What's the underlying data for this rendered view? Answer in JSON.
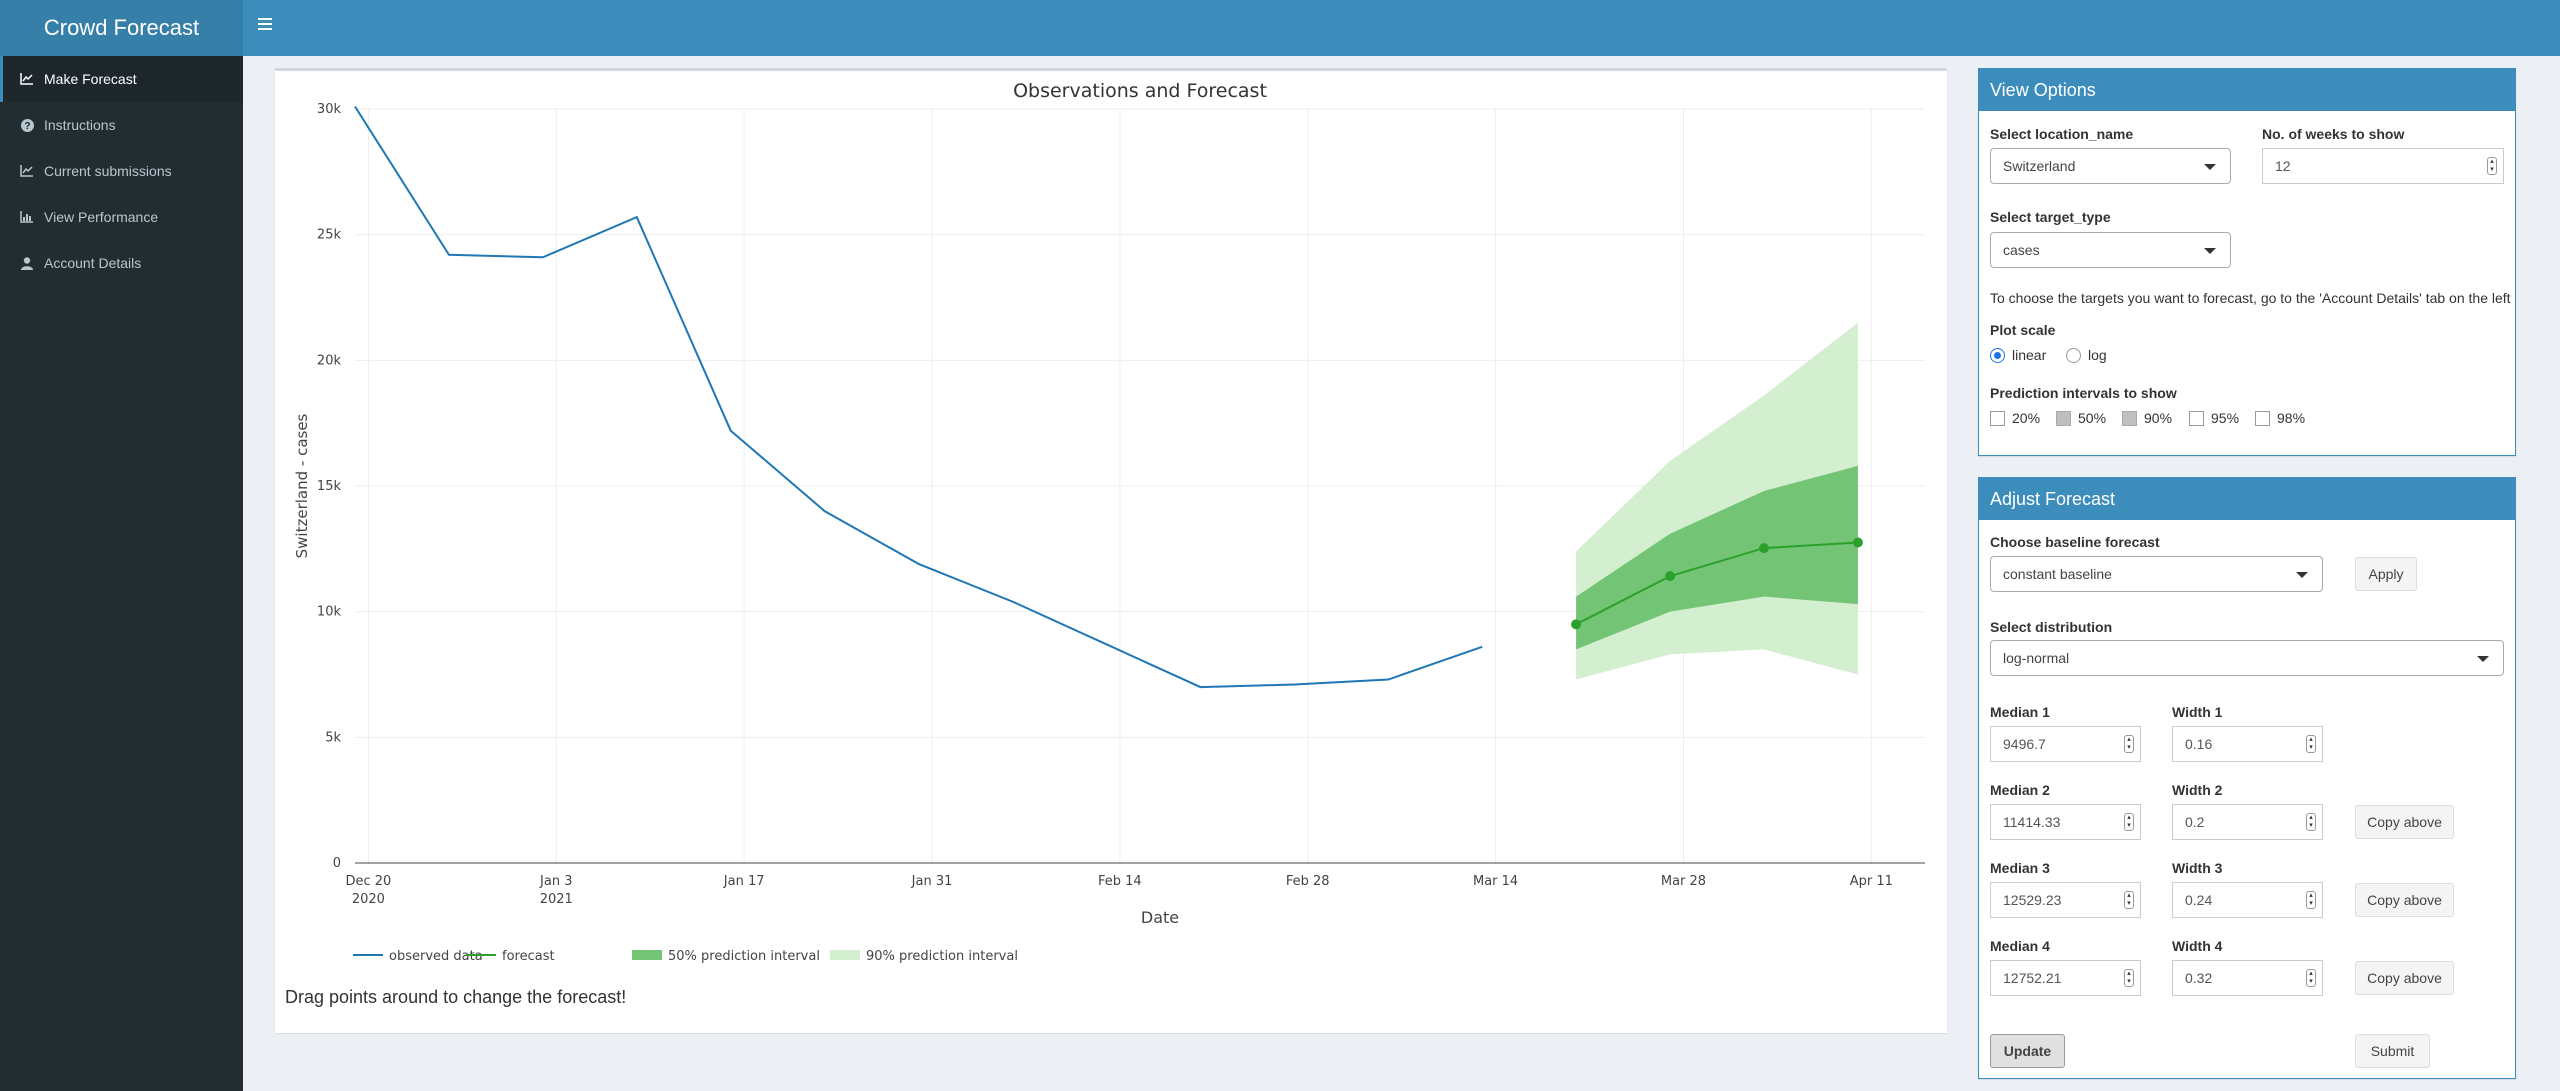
{
  "app": {
    "title": "Crowd Forecast"
  },
  "sidebar": {
    "items": [
      {
        "label": "Make Forecast",
        "icon": "line-chart-icon",
        "active": true
      },
      {
        "label": "Instructions",
        "icon": "question-circle-icon",
        "active": false
      },
      {
        "label": "Current submissions",
        "icon": "line-chart-icon",
        "active": false
      },
      {
        "label": "View Performance",
        "icon": "bar-chart-icon",
        "active": false
      },
      {
        "label": "Account Details",
        "icon": "user-icon",
        "active": false
      }
    ]
  },
  "colors": {
    "header": "#3c8dbc",
    "sidebar": "#222d32",
    "observed": "#1f77b4",
    "forecast": "#2ca02c",
    "pi50": "#74c476",
    "pi90": "#d4eed0"
  },
  "chart": {
    "drag_hint": "Drag points around to change the forecast!"
  },
  "chart_data": {
    "type": "line",
    "title": "Observations and Forecast",
    "xlabel": "Date",
    "ylabel": "Switzerland - cases",
    "x_ticks": [
      "Dec 20",
      "Jan 3",
      "Jan 17",
      "Jan 31",
      "Feb 14",
      "Feb 28",
      "Mar 14",
      "Mar 28",
      "Apr 11"
    ],
    "x_tick_years": [
      "2020",
      "2021"
    ],
    "y_ticks": [
      "0",
      "5k",
      "10k",
      "15k",
      "20k",
      "25k",
      "30k"
    ],
    "ylim": [
      0,
      30000
    ],
    "xlim": [
      "2020-12-19",
      "2021-04-15"
    ],
    "grid": true,
    "legend_position": "bottom",
    "legend": [
      "observed data",
      "forecast",
      "50% prediction interval",
      "90% prediction interval"
    ],
    "observed": {
      "x": [
        "2020-12-19",
        "2020-12-26",
        "2021-01-02",
        "2021-01-09",
        "2021-01-16",
        "2021-01-23",
        "2021-01-30",
        "2021-02-06",
        "2021-02-13",
        "2021-02-20",
        "2021-02-27",
        "2021-03-06",
        "2021-03-13"
      ],
      "y": [
        30100,
        24200,
        24100,
        25700,
        17200,
        14000,
        11900,
        10400,
        8700,
        7000,
        7100,
        7300,
        8600
      ]
    },
    "forecast": {
      "x": [
        "2021-03-20",
        "2021-03-27",
        "2021-04-03",
        "2021-04-10"
      ],
      "median": [
        9496.7,
        11414.33,
        12529.23,
        12752.21
      ],
      "pi50_lower": [
        8500,
        10000,
        10600,
        10300
      ],
      "pi50_upper": [
        10600,
        13100,
        14800,
        15800
      ],
      "pi90_lower": [
        7300,
        8300,
        8500,
        7500
      ],
      "pi90_upper": [
        12400,
        16000,
        18600,
        21500
      ]
    }
  },
  "view_options": {
    "title": "View Options",
    "location_label": "Select location_name",
    "location_value": "Switzerland",
    "weeks_label": "No. of weeks to show",
    "weeks_value": "12",
    "target_label": "Select target_type",
    "target_value": "cases",
    "info_text": "To choose the targets you want to forecast, go to the 'Account Details' tab on the left",
    "scale_label": "Plot scale",
    "scale_options": [
      {
        "label": "linear",
        "selected": true
      },
      {
        "label": "log",
        "selected": false
      }
    ],
    "pi_label": "Prediction intervals to show",
    "pi_options": [
      {
        "label": "20%",
        "checked": false
      },
      {
        "label": "50%",
        "checked": true
      },
      {
        "label": "90%",
        "checked": true
      },
      {
        "label": "95%",
        "checked": false
      },
      {
        "label": "98%",
        "checked": false
      }
    ]
  },
  "adjust": {
    "title": "Adjust Forecast",
    "baseline_label": "Choose baseline forecast",
    "baseline_value": "constant baseline",
    "apply_label": "Apply",
    "distribution_label": "Select distribution",
    "distribution_value": "log-normal",
    "rows": [
      {
        "median_label": "Median 1",
        "median_value": "9496.7",
        "width_label": "Width 1",
        "width_value": "0.16"
      },
      {
        "median_label": "Median 2",
        "median_value": "11414.33",
        "width_label": "Width 2",
        "width_value": "0.2"
      },
      {
        "median_label": "Median 3",
        "median_value": "12529.23",
        "width_label": "Width 3",
        "width_value": "0.24"
      },
      {
        "median_label": "Median 4",
        "median_value": "12752.21",
        "width_label": "Width 4",
        "width_value": "0.32"
      }
    ],
    "copy_label": "Copy above",
    "update_label": "Update",
    "submit_label": "Submit"
  }
}
